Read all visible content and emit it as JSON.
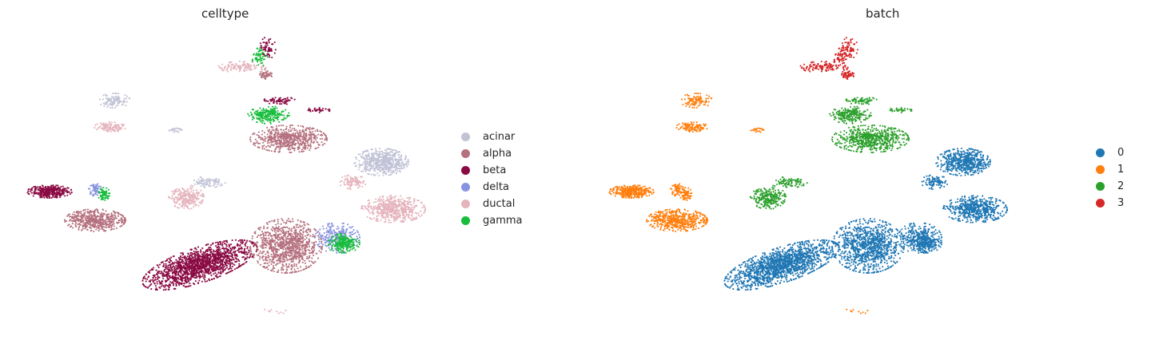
{
  "chart_data": [
    {
      "type": "scatter",
      "title": "celltype",
      "xlabel": "",
      "ylabel": "",
      "grid": false,
      "axes_visible": false,
      "legend_placement": "right",
      "legend": [
        {
          "name": "acinar",
          "color": "#c0c2d6"
        },
        {
          "name": "alpha",
          "color": "#b5717e"
        },
        {
          "name": "beta",
          "color": "#8a0a43"
        },
        {
          "name": "delta",
          "color": "#8793e0"
        },
        {
          "name": "ductal",
          "color": "#e5b4bd"
        },
        {
          "name": "gamma",
          "color": "#17bd3c"
        }
      ]
    },
    {
      "type": "scatter",
      "title": "batch",
      "xlabel": "",
      "ylabel": "",
      "grid": false,
      "axes_visible": false,
      "legend_placement": "right",
      "legend": [
        {
          "name": "0",
          "color": "#1f77b4"
        },
        {
          "name": "1",
          "color": "#ff7f0e"
        },
        {
          "name": "2",
          "color": "#2ca02c"
        },
        {
          "name": "3",
          "color": "#d62728"
        }
      ]
    }
  ]
}
